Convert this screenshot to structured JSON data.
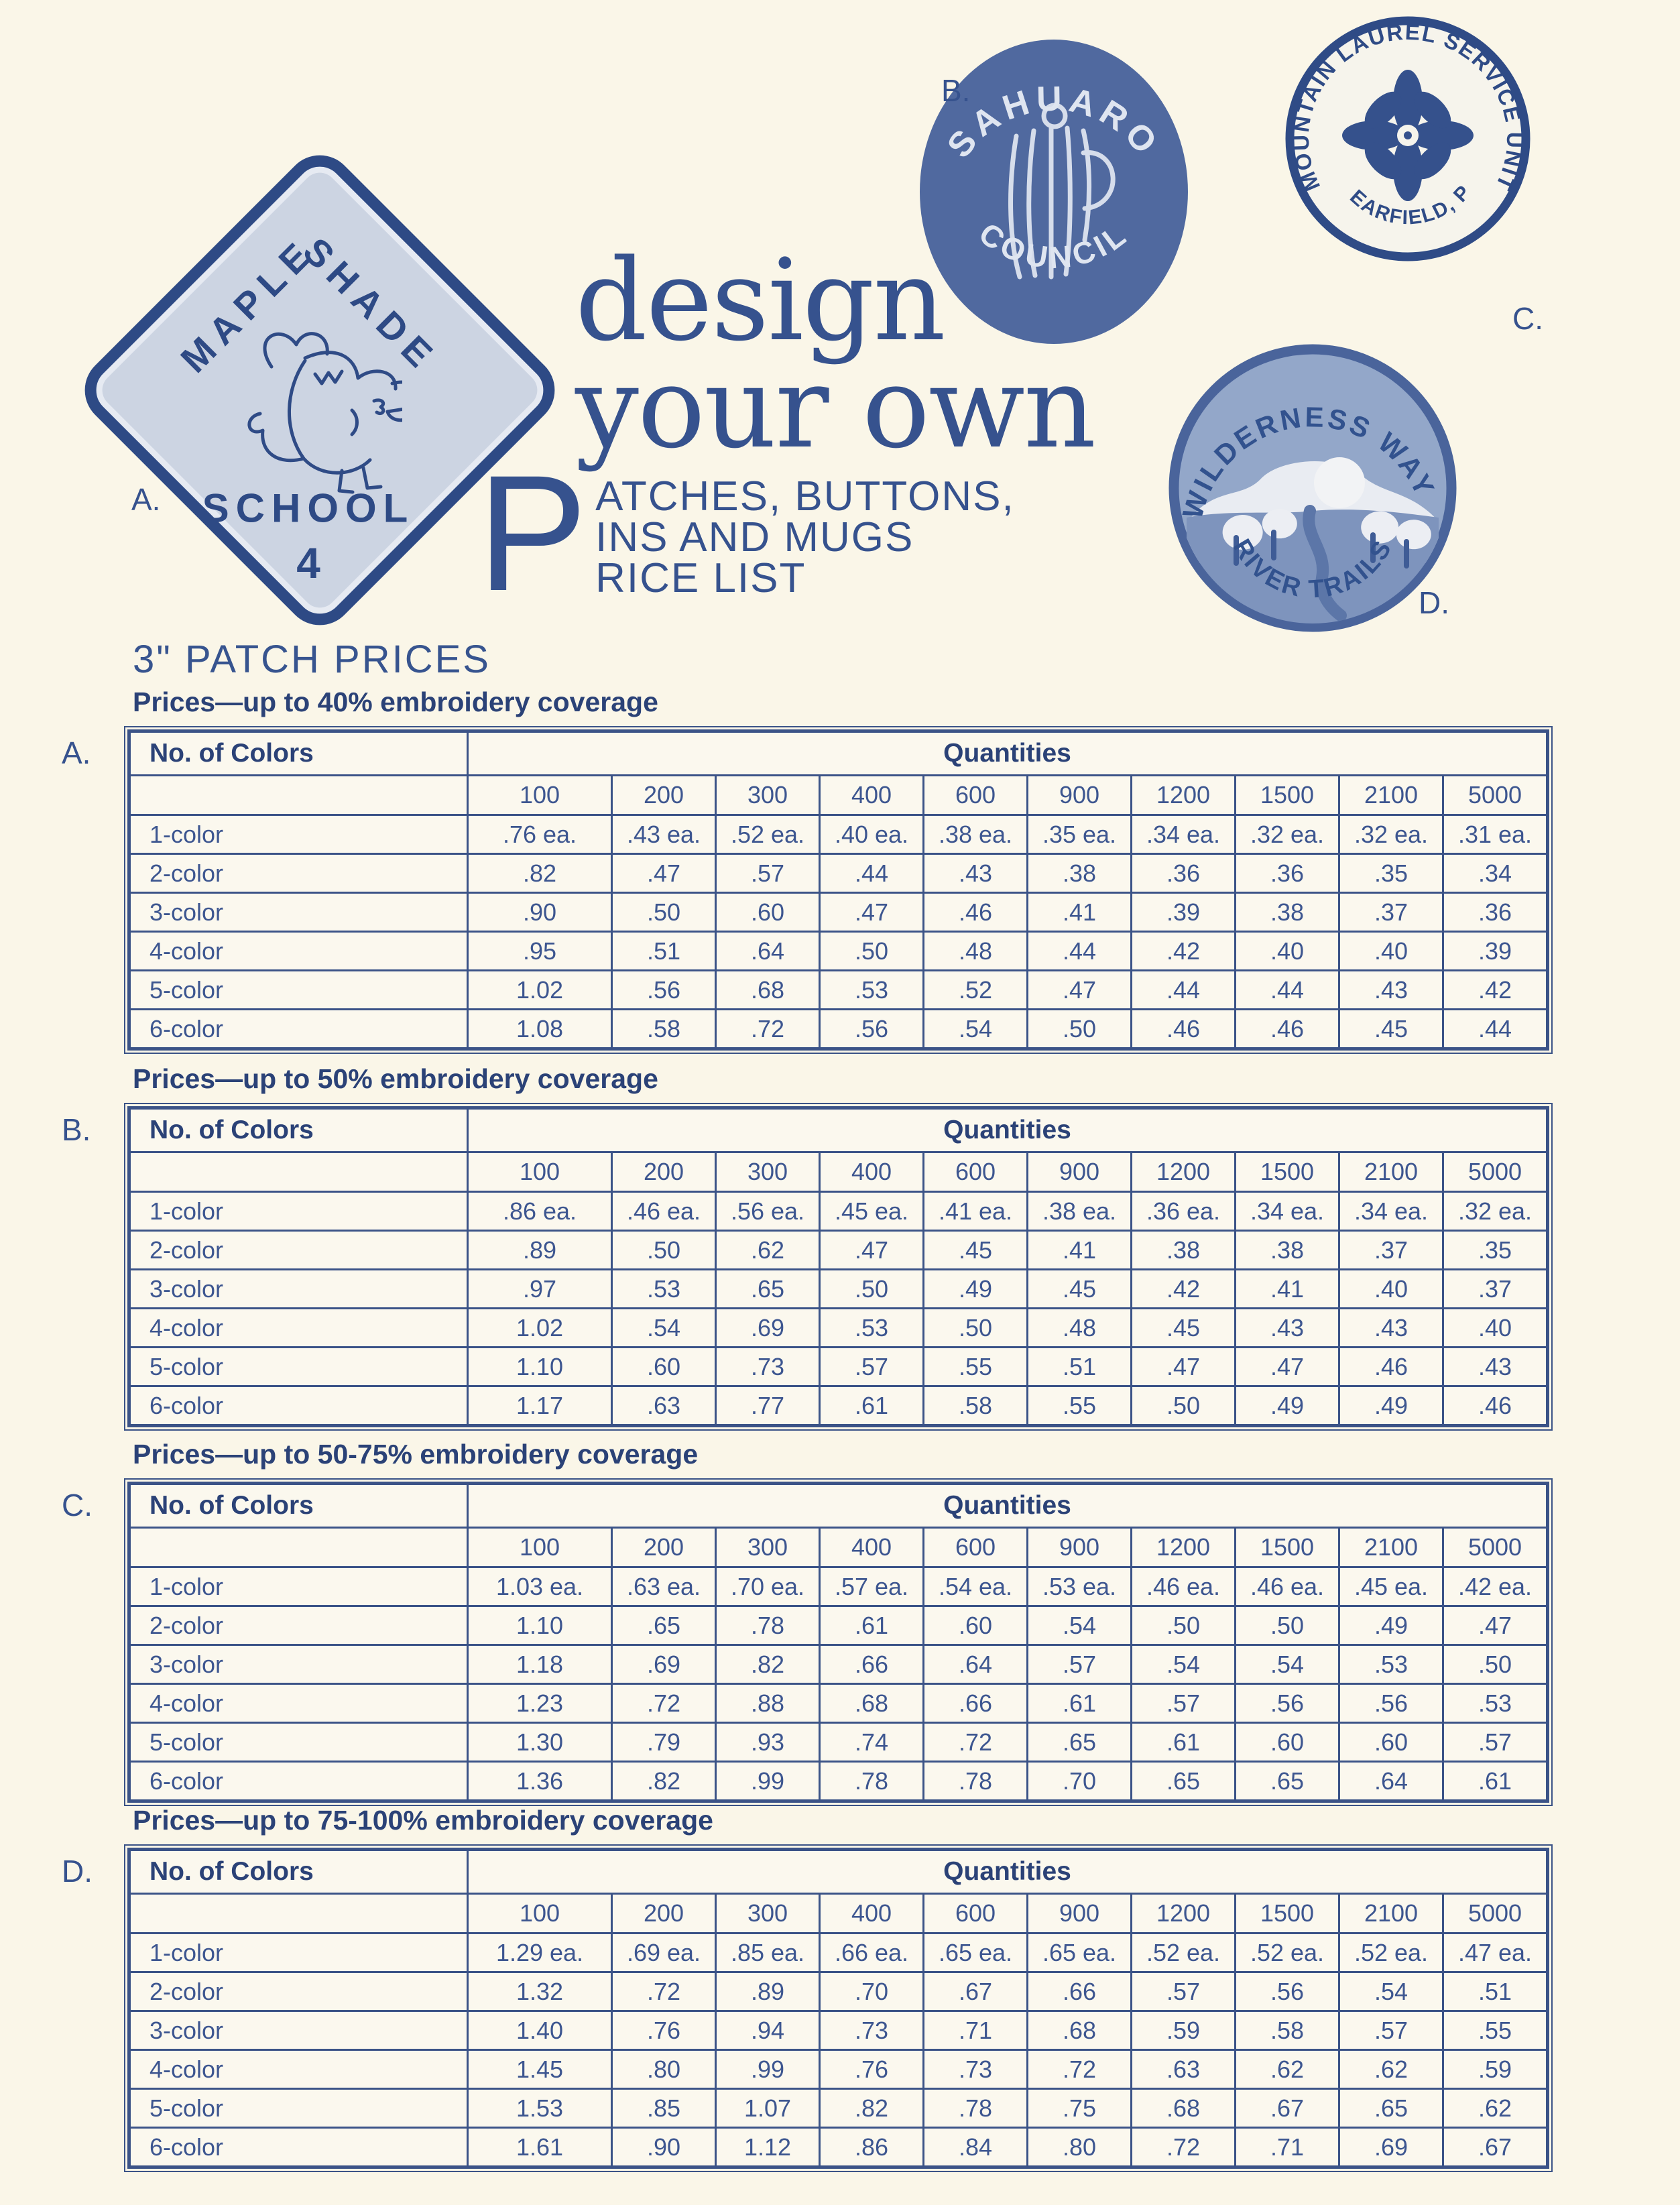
{
  "title": {
    "line1": "design",
    "line2": "your own",
    "dropcap": "P",
    "sub1": "ATCHES, BUTTONS,",
    "sub2": "INS AND MUGS",
    "sub3": "RICE LIST",
    "section_title": "3\" PATCH PRICES"
  },
  "patches": {
    "a": {
      "label": "A.",
      "word1": "MAPLE",
      "word2": "SHADE",
      "word3": "SCHOOL",
      "number": "4"
    },
    "b": {
      "label": "B.",
      "arc_top": "SAHUARO",
      "arc_bottom": "COUNCIL"
    },
    "c": {
      "label": "C.",
      "arc_top": "MOUNTAIN LAUREL SERVICE UNIT",
      "arc_bottom": "CLEARFIELD, PA."
    },
    "d": {
      "label": "D.",
      "arc_top": "WILDERNESS WAYS",
      "arc_bottom": "RIVER TRAILS"
    }
  },
  "colors": {
    "accent_navy": "#36528e",
    "table_border": "#3b5387",
    "patch_solid_blue": "#50699f",
    "paper_cream": "#faf6e8"
  },
  "tables": [
    {
      "label": "A.",
      "heading": "Prices—up to 40% embroidery coverage",
      "col_header": "No. of Colors",
      "quant_header": "Quantities",
      "quantities": [
        "100",
        "200",
        "300",
        "400",
        "600",
        "900",
        "1200",
        "1500",
        "2100",
        "5000"
      ],
      "rows": [
        {
          "name": "1-color",
          "values": [
            ".76 ea.",
            ".43 ea.",
            ".52 ea.",
            ".40 ea.",
            ".38 ea.",
            ".35 ea.",
            ".34 ea.",
            ".32 ea.",
            ".32 ea.",
            ".31 ea."
          ]
        },
        {
          "name": "2-color",
          "values": [
            ".82",
            ".47",
            ".57",
            ".44",
            ".43",
            ".38",
            ".36",
            ".36",
            ".35",
            ".34"
          ]
        },
        {
          "name": "3-color",
          "values": [
            ".90",
            ".50",
            ".60",
            ".47",
            ".46",
            ".41",
            ".39",
            ".38",
            ".37",
            ".36"
          ]
        },
        {
          "name": "4-color",
          "values": [
            ".95",
            ".51",
            ".64",
            ".50",
            ".48",
            ".44",
            ".42",
            ".40",
            ".40",
            ".39"
          ]
        },
        {
          "name": "5-color",
          "values": [
            "1.02",
            ".56",
            ".68",
            ".53",
            ".52",
            ".47",
            ".44",
            ".44",
            ".43",
            ".42"
          ]
        },
        {
          "name": "6-color",
          "values": [
            "1.08",
            ".58",
            ".72",
            ".56",
            ".54",
            ".50",
            ".46",
            ".46",
            ".45",
            ".44"
          ]
        }
      ]
    },
    {
      "label": "B.",
      "heading": "Prices—up to 50% embroidery coverage",
      "col_header": "No. of Colors",
      "quant_header": "Quantities",
      "quantities": [
        "100",
        "200",
        "300",
        "400",
        "600",
        "900",
        "1200",
        "1500",
        "2100",
        "5000"
      ],
      "rows": [
        {
          "name": "1-color",
          "values": [
            ".86 ea.",
            ".46 ea.",
            ".56 ea.",
            ".45 ea.",
            ".41 ea.",
            ".38 ea.",
            ".36 ea.",
            ".34 ea.",
            ".34 ea.",
            ".32 ea."
          ]
        },
        {
          "name": "2-color",
          "values": [
            ".89",
            ".50",
            ".62",
            ".47",
            ".45",
            ".41",
            ".38",
            ".38",
            ".37",
            ".35"
          ]
        },
        {
          "name": "3-color",
          "values": [
            ".97",
            ".53",
            ".65",
            ".50",
            ".49",
            ".45",
            ".42",
            ".41",
            ".40",
            ".37"
          ]
        },
        {
          "name": "4-color",
          "values": [
            "1.02",
            ".54",
            ".69",
            ".53",
            ".50",
            ".48",
            ".45",
            ".43",
            ".43",
            ".40"
          ]
        },
        {
          "name": "5-color",
          "values": [
            "1.10",
            ".60",
            ".73",
            ".57",
            ".55",
            ".51",
            ".47",
            ".47",
            ".46",
            ".43"
          ]
        },
        {
          "name": "6-color",
          "values": [
            "1.17",
            ".63",
            ".77",
            ".61",
            ".58",
            ".55",
            ".50",
            ".49",
            ".49",
            ".46"
          ]
        }
      ]
    },
    {
      "label": "C.",
      "heading": "Prices—up to 50-75% embroidery coverage",
      "col_header": "No. of Colors",
      "quant_header": "Quantities",
      "quantities": [
        "100",
        "200",
        "300",
        "400",
        "600",
        "900",
        "1200",
        "1500",
        "2100",
        "5000"
      ],
      "rows": [
        {
          "name": "1-color",
          "values": [
            "1.03 ea.",
            ".63 ea.",
            ".70 ea.",
            ".57 ea.",
            ".54 ea.",
            ".53 ea.",
            ".46 ea.",
            ".46 ea.",
            ".45 ea.",
            ".42 ea."
          ]
        },
        {
          "name": "2-color",
          "values": [
            "1.10",
            ".65",
            ".78",
            ".61",
            ".60",
            ".54",
            ".50",
            ".50",
            ".49",
            ".47"
          ]
        },
        {
          "name": "3-color",
          "values": [
            "1.18",
            ".69",
            ".82",
            ".66",
            ".64",
            ".57",
            ".54",
            ".54",
            ".53",
            ".50"
          ]
        },
        {
          "name": "4-color",
          "values": [
            "1.23",
            ".72",
            ".88",
            ".68",
            ".66",
            ".61",
            ".57",
            ".56",
            ".56",
            ".53"
          ]
        },
        {
          "name": "5-color",
          "values": [
            "1.30",
            ".79",
            ".93",
            ".74",
            ".72",
            ".65",
            ".61",
            ".60",
            ".60",
            ".57"
          ]
        },
        {
          "name": "6-color",
          "values": [
            "1.36",
            ".82",
            ".99",
            ".78",
            ".78",
            ".70",
            ".65",
            ".65",
            ".64",
            ".61"
          ]
        }
      ]
    },
    {
      "label": "D.",
      "heading": "Prices—up to 75-100% embroidery coverage",
      "col_header": "No. of Colors",
      "quant_header": "Quantities",
      "quantities": [
        "100",
        "200",
        "300",
        "400",
        "600",
        "900",
        "1200",
        "1500",
        "2100",
        "5000"
      ],
      "rows": [
        {
          "name": "1-color",
          "values": [
            "1.29 ea.",
            ".69 ea.",
            ".85 ea.",
            ".66 ea.",
            ".65 ea.",
            ".65 ea.",
            ".52 ea.",
            ".52 ea.",
            ".52 ea.",
            ".47 ea."
          ]
        },
        {
          "name": "2-color",
          "values": [
            "1.32",
            ".72",
            ".89",
            ".70",
            ".67",
            ".66",
            ".57",
            ".56",
            ".54",
            ".51"
          ]
        },
        {
          "name": "3-color",
          "values": [
            "1.40",
            ".76",
            ".94",
            ".73",
            ".71",
            ".68",
            ".59",
            ".58",
            ".57",
            ".55"
          ]
        },
        {
          "name": "4-color",
          "values": [
            "1.45",
            ".80",
            ".99",
            ".76",
            ".73",
            ".72",
            ".63",
            ".62",
            ".62",
            ".59"
          ]
        },
        {
          "name": "5-color",
          "values": [
            "1.53",
            ".85",
            "1.07",
            ".82",
            ".78",
            ".75",
            ".68",
            ".67",
            ".65",
            ".62"
          ]
        },
        {
          "name": "6-color",
          "values": [
            "1.61",
            ".90",
            "1.12",
            ".86",
            ".84",
            ".80",
            ".72",
            ".71",
            ".69",
            ".67"
          ]
        }
      ]
    }
  ]
}
